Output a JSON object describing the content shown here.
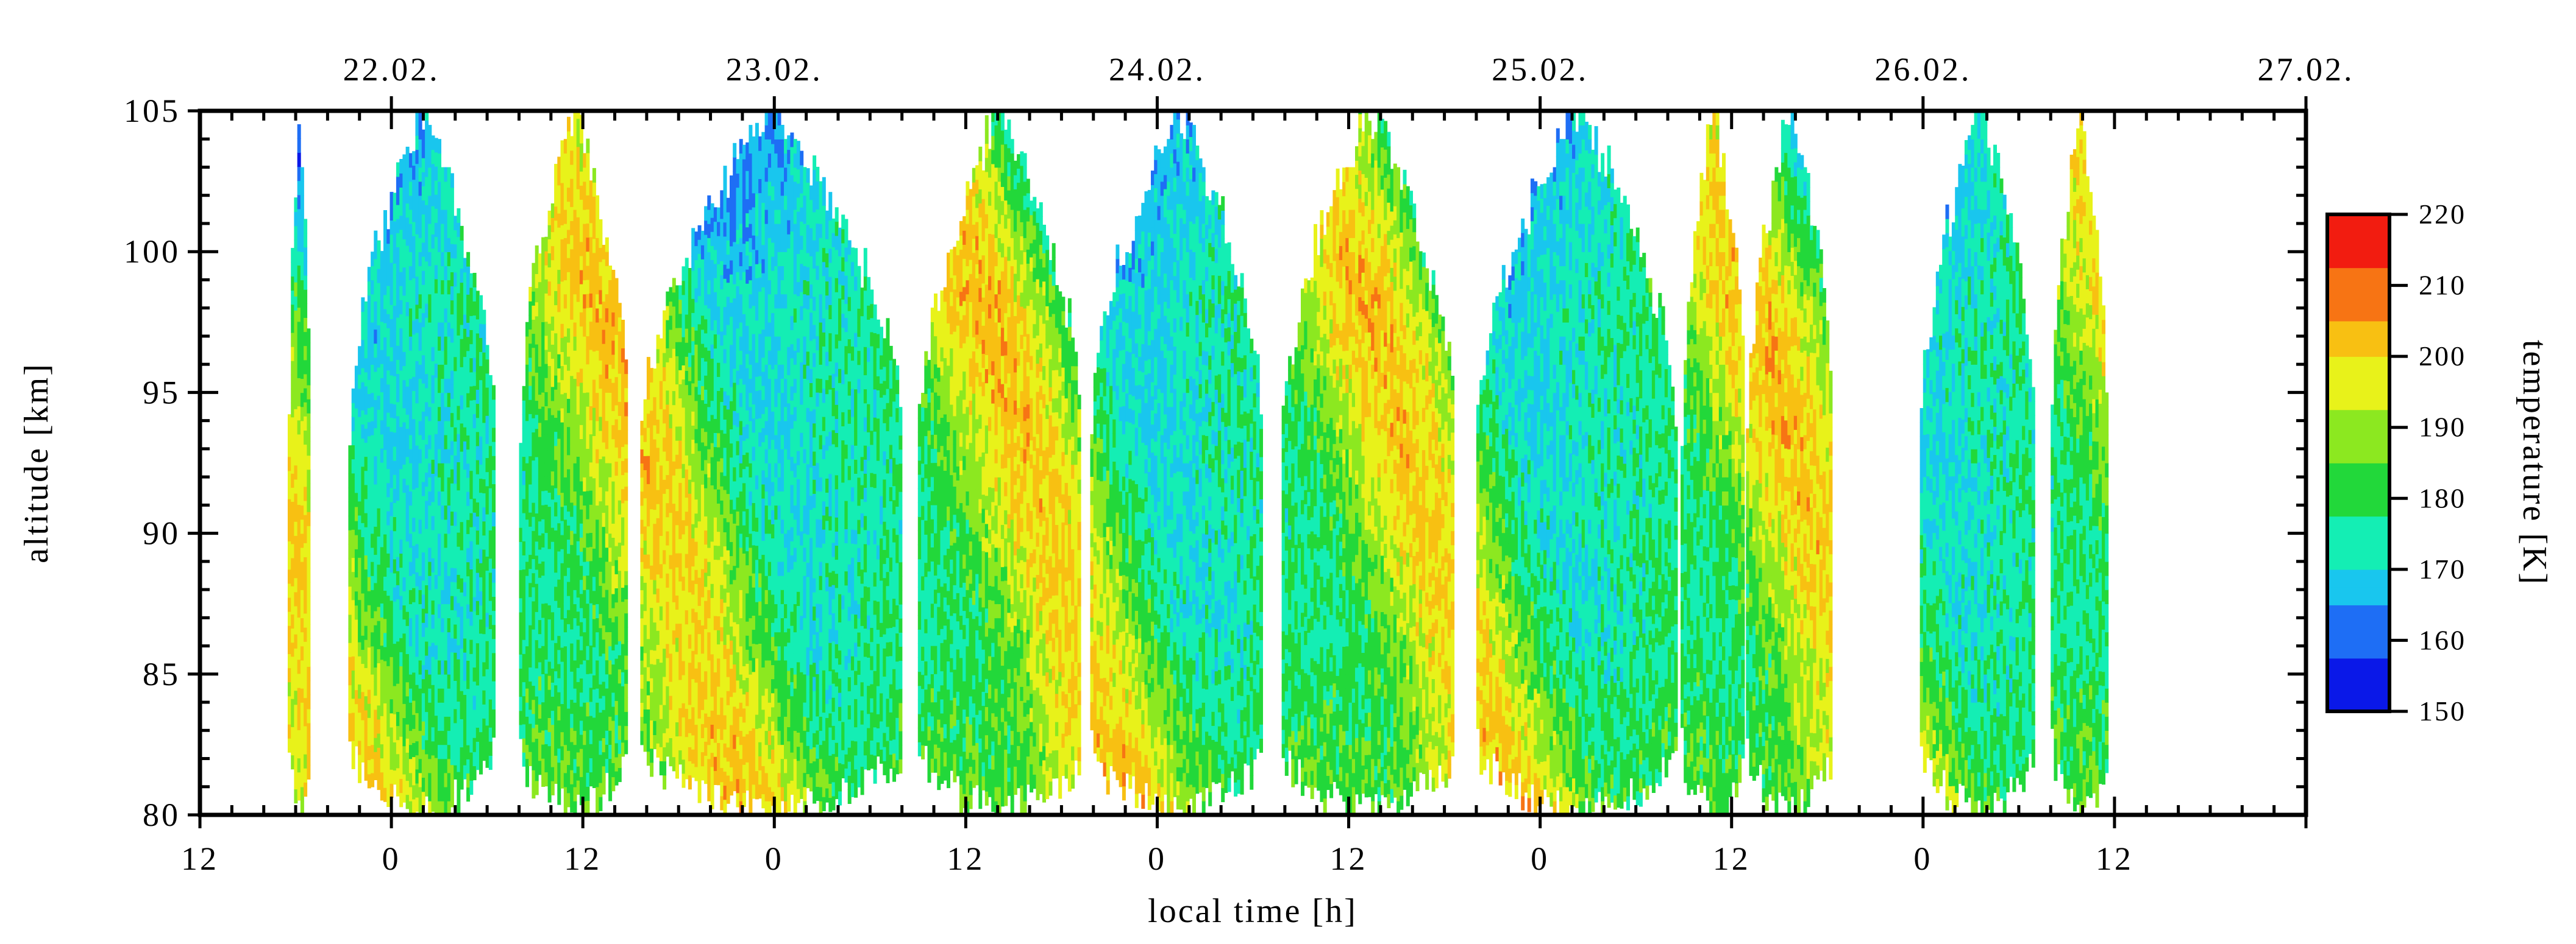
{
  "chart_data": {
    "type": "heatmap",
    "title": "",
    "xlabel": "local time [h]",
    "ylabel": "altitude [km]",
    "colorbar_label": "temperature [K]",
    "ylim": [
      80,
      105
    ],
    "y_ticks": [
      "80",
      "85",
      "90",
      "95",
      "100",
      "105"
    ],
    "x_range_hours": [
      -12,
      120
    ],
    "x_ticks": [
      "12",
      "0",
      "12",
      "0",
      "12",
      "0",
      "12",
      "0",
      "12",
      "0",
      "12"
    ],
    "date_labels": [
      "22.02.",
      "23.02.",
      "24.02.",
      "25.02.",
      "26.02.",
      "27.02."
    ],
    "colorbar_range": [
      150,
      220
    ],
    "colorbar_ticks": [
      "150",
      "160",
      "170",
      "180",
      "190",
      "200",
      "210",
      "220"
    ],
    "colormap": [
      "#0a18e8",
      "#1e6ef5",
      "#19c6ee",
      "#14eeb4",
      "#22d83a",
      "#8ce820",
      "#e8f21a",
      "#f8c012",
      "#f77414",
      "#f21c10"
    ],
    "measurement_periods_hours": [
      [
        -6.5,
        -5.2
      ],
      [
        -2.7,
        6.4
      ],
      [
        8.0,
        14.8
      ],
      [
        15.6,
        32.0
      ],
      [
        33.0,
        43.2
      ],
      [
        43.8,
        54.5
      ],
      [
        55.8,
        66.6
      ],
      [
        68.0,
        80.5
      ],
      [
        80.8,
        84.8
      ],
      [
        84.9,
        90.3
      ],
      [
        95.8,
        103.0
      ],
      [
        104.0,
        107.5
      ]
    ],
    "features": {
      "cold_regions_near_top": "around local midnight to early morning each night (150-165 K at 97-105 km)",
      "warm_regions_near_bottom": "around local midnight each night (205-220 K at 80-88 km)",
      "downward_phase_progression": "warm and cold bands descend with time, tidal signature"
    }
  }
}
